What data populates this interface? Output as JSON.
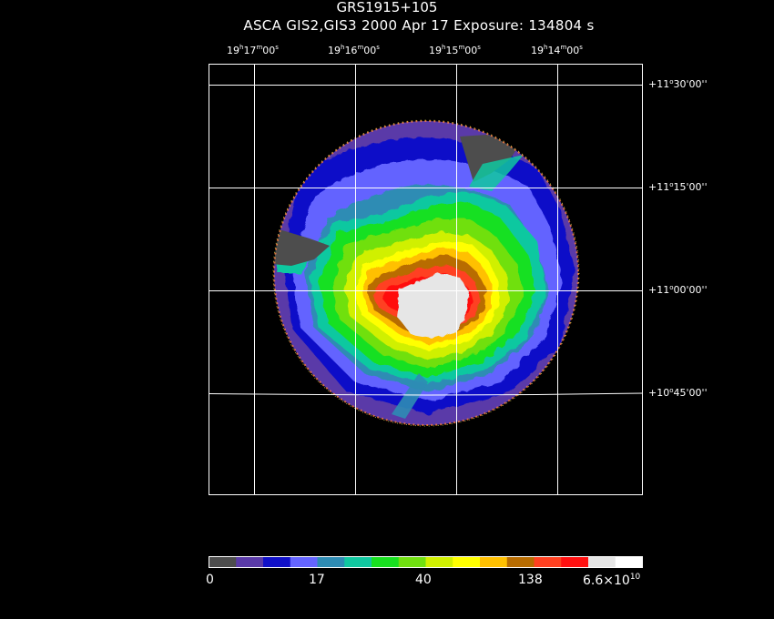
{
  "header": {
    "title": "GRS1915+105",
    "subtitle": "ASCA GIS2,GIS3   2000 Apr 17    Exposure: 134804 s"
  },
  "axes": {
    "ra_labels": [
      {
        "h": "19",
        "m": "17",
        "s": "00"
      },
      {
        "h": "19",
        "m": "16",
        "s": "00"
      },
      {
        "h": "19",
        "m": "15",
        "s": "00"
      },
      {
        "h": "19",
        "m": "14",
        "s": "00"
      }
    ],
    "dec_labels": [
      {
        "deg": "+11",
        "min": "30",
        "sec": "00"
      },
      {
        "deg": "+11",
        "min": "15",
        "sec": "00"
      },
      {
        "deg": "+11",
        "min": "00",
        "sec": "00"
      },
      {
        "deg": "+10",
        "min": "45",
        "sec": "00"
      }
    ],
    "deg_symbol": "o",
    "ra_sup": {
      "h": "h",
      "m": "m",
      "s": "s"
    },
    "arcmin_mark": "'",
    "arcsec_mark": "''"
  },
  "colorbar": {
    "colors": [
      "#4d4d4d",
      "#5a3aa8",
      "#1010c8",
      "#6464ff",
      "#2e8cb4",
      "#10c8a0",
      "#18e020",
      "#70e010",
      "#d0f000",
      "#ffff00",
      "#ffc000",
      "#b86c00",
      "#ff4020",
      "#ff1010",
      "#e6e6e6",
      "#ffffff"
    ],
    "tick_labels": [
      "0",
      "17",
      "40",
      "138"
    ],
    "max_label_base": "6.6×10",
    "max_label_exp": "10"
  }
}
